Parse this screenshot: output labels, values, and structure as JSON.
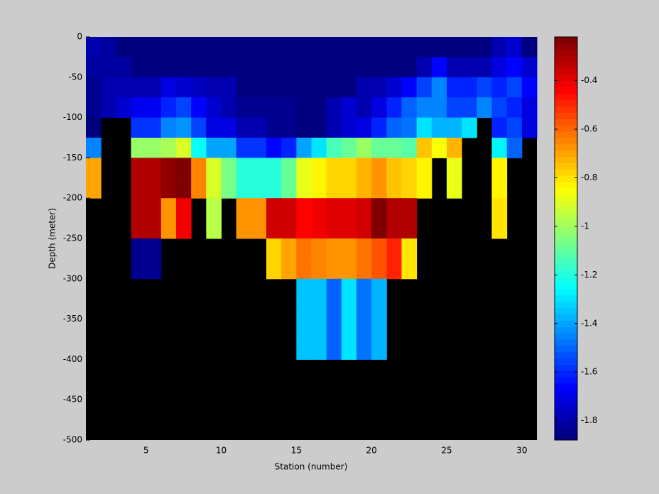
{
  "chart_data": {
    "type": "heatmap",
    "colormap": "jet",
    "missing_color": "#000000",
    "x_label": "Station (number)",
    "y_label": "Depth (meter)",
    "x": [
      1,
      2,
      3,
      4,
      5,
      6,
      7,
      8,
      9,
      10,
      11,
      12,
      13,
      14,
      15,
      16,
      17,
      18,
      19,
      20,
      21,
      22,
      23,
      24,
      25,
      26,
      27,
      28,
      29,
      30,
      31
    ],
    "y": [
      0,
      -25,
      -50,
      -75,
      -100,
      -125,
      -150,
      -175,
      -200,
      -225,
      -250,
      -275,
      -300,
      -325,
      -350,
      -375,
      -400,
      -425,
      -450,
      -475,
      -500
    ],
    "values": [
      [
        -1.8,
        -1.82,
        -1.86,
        -1.86,
        -1.86,
        -1.86,
        -1.86,
        -1.86,
        -1.86,
        -1.86,
        -1.86,
        -1.86,
        -1.86,
        -1.86,
        -1.86,
        -1.86,
        -1.86,
        -1.86,
        -1.86,
        -1.86,
        -1.86,
        -1.86,
        -1.86,
        -1.86,
        -1.86,
        -1.86,
        -1.86,
        -1.8,
        -1.75,
        -1.86
      ],
      [
        -1.82,
        -1.82,
        -1.82,
        -1.86,
        -1.86,
        -1.86,
        -1.86,
        -1.86,
        -1.86,
        -1.86,
        -1.86,
        -1.86,
        -1.86,
        -1.86,
        -1.86,
        -1.86,
        -1.86,
        -1.86,
        -1.86,
        -1.86,
        -1.86,
        -1.86,
        -1.78,
        -1.65,
        -1.8,
        -1.8,
        -1.78,
        -1.7,
        -1.65,
        -1.75
      ],
      [
        -1.84,
        -1.8,
        -1.8,
        -1.78,
        -1.78,
        -1.7,
        -1.75,
        -1.76,
        -1.8,
        -1.8,
        -1.86,
        -1.86,
        -1.86,
        -1.86,
        -1.86,
        -1.86,
        -1.86,
        -1.86,
        -1.8,
        -1.8,
        -1.75,
        -1.65,
        -1.55,
        -1.45,
        -1.6,
        -1.6,
        -1.55,
        -1.6,
        -1.55,
        -1.65
      ],
      [
        -1.84,
        -1.78,
        -1.75,
        -1.68,
        -1.68,
        -1.6,
        -1.55,
        -1.65,
        -1.75,
        -1.8,
        -1.85,
        -1.85,
        -1.85,
        -1.85,
        -1.86,
        -1.86,
        -1.8,
        -1.75,
        -1.78,
        -1.7,
        -1.6,
        -1.5,
        -1.45,
        -1.45,
        -1.55,
        -1.55,
        -1.45,
        -1.55,
        -1.6,
        -1.7
      ],
      [
        -1.86,
        null,
        null,
        -1.58,
        -1.58,
        -1.45,
        -1.42,
        -1.55,
        -1.7,
        -1.72,
        -1.78,
        -1.78,
        -1.85,
        -1.85,
        -1.86,
        -1.86,
        -1.8,
        -1.75,
        -1.72,
        -1.62,
        -1.5,
        -1.48,
        -1.3,
        -1.38,
        -1.38,
        -1.3,
        null,
        -1.6,
        -1.55,
        -1.7
      ],
      [
        -1.45,
        null,
        null,
        -1.0,
        -1.0,
        -0.98,
        -0.9,
        -1.25,
        -1.4,
        -1.4,
        -1.58,
        -1.58,
        -1.65,
        -1.6,
        -1.4,
        -1.3,
        -1.15,
        -1.1,
        -1.02,
        -1.08,
        -1.1,
        -1.12,
        -0.75,
        -0.85,
        -0.72,
        null,
        null,
        -1.28,
        -1.5,
        null
      ],
      [
        -0.7,
        null,
        null,
        -0.3,
        -0.3,
        -0.25,
        -0.22,
        -0.65,
        -0.9,
        -1.05,
        -1.18,
        -1.18,
        -1.18,
        -1.1,
        -0.88,
        -0.82,
        -0.78,
        -0.78,
        -0.73,
        -0.68,
        -0.75,
        -0.78,
        -0.82,
        null,
        -0.88,
        null,
        null,
        -0.82,
        null,
        null
      ],
      [
        -0.7,
        null,
        null,
        -0.3,
        -0.3,
        -0.25,
        -0.22,
        -0.65,
        -0.9,
        -1.05,
        -1.18,
        -1.18,
        -1.18,
        -1.1,
        -0.88,
        -0.82,
        -0.78,
        -0.78,
        -0.73,
        -0.68,
        -0.75,
        -0.78,
        -0.82,
        null,
        -0.88,
        null,
        null,
        -0.82,
        null,
        null
      ],
      [
        null,
        null,
        null,
        -0.3,
        -0.3,
        -0.68,
        -0.42,
        null,
        -0.95,
        null,
        -0.68,
        -0.68,
        -0.35,
        -0.35,
        -0.45,
        -0.42,
        -0.4,
        -0.4,
        -0.35,
        -0.22,
        -0.3,
        -0.3,
        null,
        null,
        null,
        null,
        null,
        -0.8,
        null,
        null
      ],
      [
        null,
        null,
        null,
        -0.3,
        -0.3,
        -0.68,
        -0.42,
        null,
        -0.95,
        null,
        -0.68,
        -0.68,
        -0.35,
        -0.35,
        -0.45,
        -0.42,
        -0.4,
        -0.4,
        -0.35,
        -0.22,
        -0.3,
        -0.3,
        null,
        null,
        null,
        null,
        null,
        -0.8,
        null,
        null
      ],
      [
        null,
        null,
        null,
        -1.83,
        -1.83,
        null,
        null,
        null,
        null,
        null,
        null,
        null,
        -0.78,
        -0.7,
        -0.62,
        -0.65,
        -0.68,
        -0.68,
        -0.62,
        -0.58,
        -0.5,
        -0.8,
        null,
        null,
        null,
        null,
        null,
        null,
        null,
        null
      ],
      [
        null,
        null,
        null,
        -1.83,
        -1.83,
        null,
        null,
        null,
        null,
        null,
        null,
        null,
        -0.78,
        -0.7,
        -0.62,
        -0.65,
        -0.68,
        -0.68,
        -0.62,
        -0.58,
        -0.5,
        -0.8,
        null,
        null,
        null,
        null,
        null,
        null,
        null,
        null
      ],
      [
        null,
        null,
        null,
        null,
        null,
        null,
        null,
        null,
        null,
        null,
        null,
        null,
        null,
        null,
        -1.35,
        -1.35,
        -1.5,
        -1.3,
        -1.48,
        -1.38,
        null,
        null,
        null,
        null,
        null,
        null,
        null,
        null,
        null,
        null
      ],
      [
        null,
        null,
        null,
        null,
        null,
        null,
        null,
        null,
        null,
        null,
        null,
        null,
        null,
        null,
        -1.35,
        -1.35,
        -1.5,
        -1.3,
        -1.48,
        -1.38,
        null,
        null,
        null,
        null,
        null,
        null,
        null,
        null,
        null,
        null
      ],
      [
        null,
        null,
        null,
        null,
        null,
        null,
        null,
        null,
        null,
        null,
        null,
        null,
        null,
        null,
        -1.35,
        -1.35,
        -1.5,
        -1.3,
        -1.48,
        -1.38,
        null,
        null,
        null,
        null,
        null,
        null,
        null,
        null,
        null,
        null
      ],
      [
        null,
        null,
        null,
        null,
        null,
        null,
        null,
        null,
        null,
        null,
        null,
        null,
        null,
        null,
        -1.35,
        -1.35,
        -1.5,
        -1.3,
        -1.48,
        -1.38,
        null,
        null,
        null,
        null,
        null,
        null,
        null,
        null,
        null,
        null
      ],
      [
        null,
        null,
        null,
        null,
        null,
        null,
        null,
        null,
        null,
        null,
        null,
        null,
        null,
        null,
        null,
        null,
        null,
        null,
        null,
        null,
        null,
        null,
        null,
        null,
        null,
        null,
        null,
        null,
        null,
        null
      ],
      [
        null,
        null,
        null,
        null,
        null,
        null,
        null,
        null,
        null,
        null,
        null,
        null,
        null,
        null,
        null,
        null,
        null,
        null,
        null,
        null,
        null,
        null,
        null,
        null,
        null,
        null,
        null,
        null,
        null,
        null
      ],
      [
        null,
        null,
        null,
        null,
        null,
        null,
        null,
        null,
        null,
        null,
        null,
        null,
        null,
        null,
        null,
        null,
        null,
        null,
        null,
        null,
        null,
        null,
        null,
        null,
        null,
        null,
        null,
        null,
        null,
        null
      ],
      [
        null,
        null,
        null,
        null,
        null,
        null,
        null,
        null,
        null,
        null,
        null,
        null,
        null,
        null,
        null,
        null,
        null,
        null,
        null,
        null,
        null,
        null,
        null,
        null,
        null,
        null,
        null,
        null,
        null,
        null
      ]
    ],
    "xlim": [
      1,
      31
    ],
    "xticks": [
      5,
      10,
      15,
      20,
      25,
      30
    ],
    "ylim": [
      -500,
      0
    ],
    "yticks": [
      0,
      -50,
      -100,
      -150,
      -200,
      -250,
      -300,
      -350,
      -400,
      -450,
      -500
    ],
    "clim": [
      -1.88,
      -0.22
    ],
    "cticks": [
      -0.4,
      -0.6,
      -0.8,
      -1,
      -1.2,
      -1.4,
      -1.6,
      -1.8
    ]
  }
}
